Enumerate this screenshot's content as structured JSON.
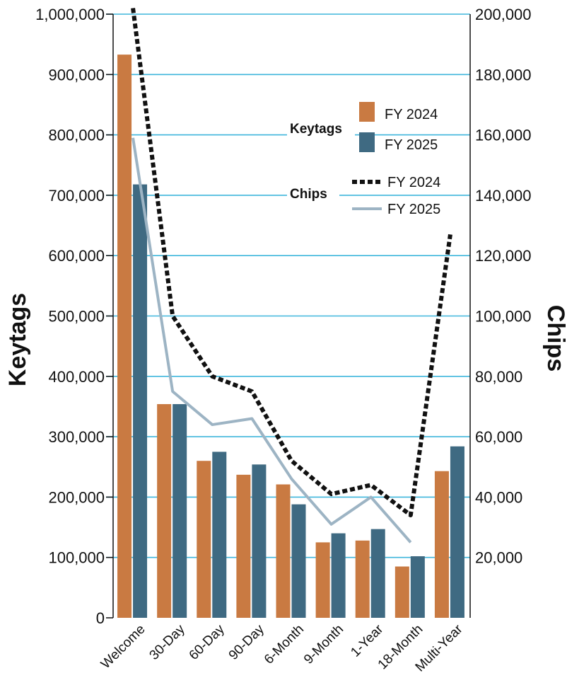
{
  "chart_data": {
    "type": "bar",
    "categories": [
      "Welcome",
      "30-Day",
      "60-Day",
      "90-Day",
      "6-Month",
      "9-Month",
      "1-Year",
      "18-Month",
      "Multi-Year"
    ],
    "series": [
      {
        "name": "FY 2024",
        "group": "Keytags",
        "kind": "bar",
        "axis": "left",
        "color": "#c97a42",
        "values": [
          933000,
          354000,
          260000,
          237000,
          221000,
          125000,
          128000,
          85000,
          243000
        ]
      },
      {
        "name": "FY 2025",
        "group": "Keytags",
        "kind": "bar",
        "axis": "left",
        "color": "#3f6a82",
        "values": [
          718000,
          354000,
          275000,
          254000,
          188000,
          140000,
          147000,
          102000,
          284000
        ]
      },
      {
        "name": "FY 2024",
        "group": "Chips",
        "kind": "line",
        "style": "dotted",
        "axis": "right",
        "color": "#111111",
        "values": [
          202000,
          100000,
          80000,
          75000,
          52000,
          41000,
          44000,
          34000,
          127000
        ]
      },
      {
        "name": "FY 2025",
        "group": "Chips",
        "kind": "line",
        "style": "solid",
        "axis": "right",
        "color": "#9db4c4",
        "values": [
          159000,
          75000,
          64000,
          66000,
          46000,
          31000,
          40000,
          25000,
          null
        ]
      }
    ],
    "y_left": {
      "label": "Keytags",
      "range": [
        0,
        1000000
      ],
      "ticks": [
        "0",
        "100,000",
        "200,000",
        "300,000",
        "400,000",
        "500,000",
        "600,000",
        "700,000",
        "800,000",
        "900,000",
        "1,000,000"
      ]
    },
    "y_right": {
      "label": "Chips",
      "range": [
        0,
        200000
      ],
      "ticks": [
        "20,000",
        "40,000",
        "60,000",
        "80,000",
        "100,000",
        "120,000",
        "140,000",
        "160,000",
        "180,000",
        "200,000"
      ]
    },
    "grid": true,
    "grid_color": "#3fb6dc",
    "legend": {
      "placement": "top-right",
      "keytags_label": "Keytags",
      "chips_label": "Chips",
      "fy2024": "FY 2024",
      "fy2025": "FY 2025"
    }
  }
}
